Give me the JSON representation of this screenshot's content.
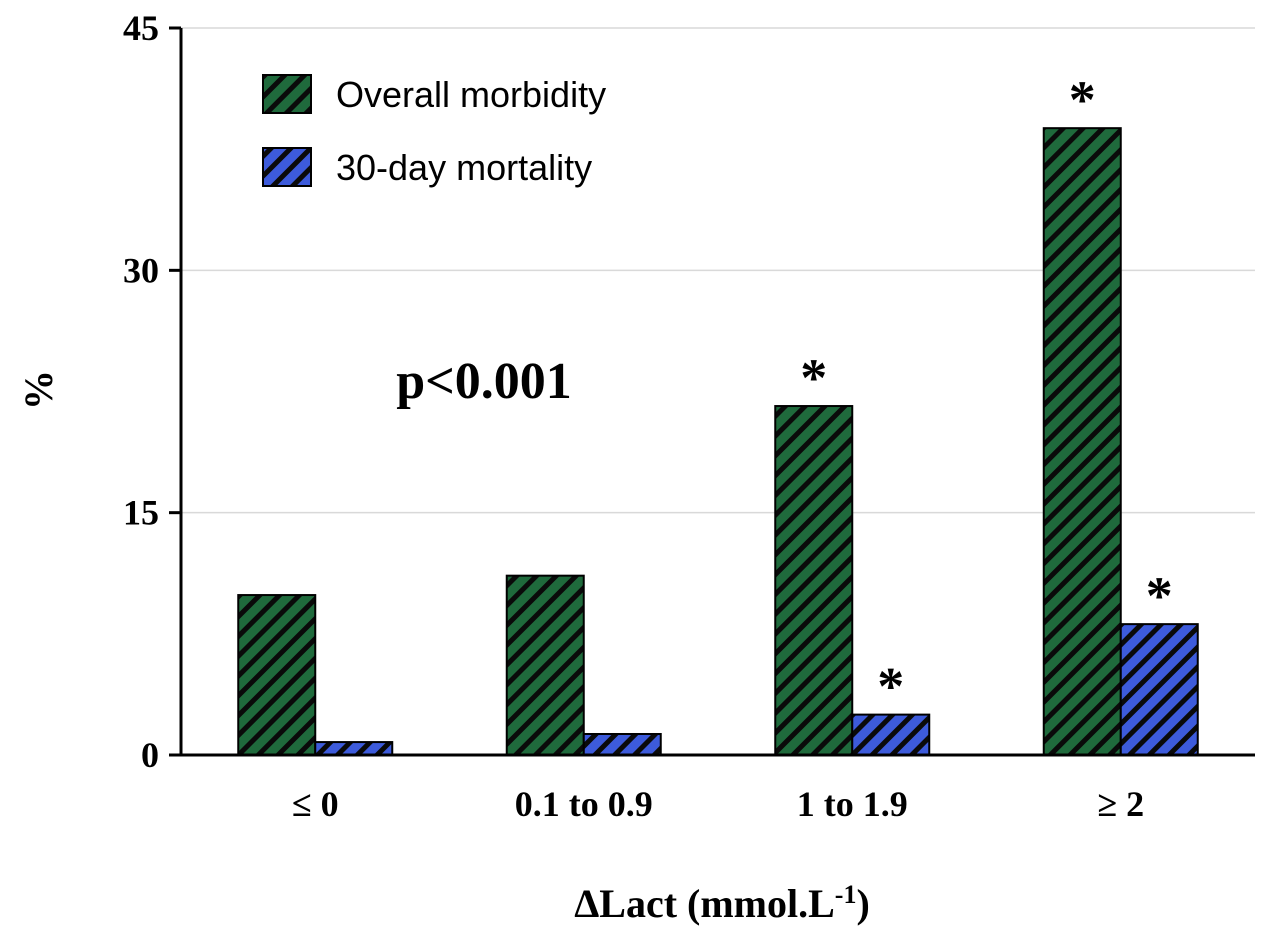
{
  "chart_data": {
    "type": "bar",
    "categories": [
      "≤ 0",
      "0.1 to 0.9",
      "1 to 1.9",
      "≥ 2"
    ],
    "series": [
      {
        "name": "Overall morbidity",
        "values": [
          9.9,
          11.1,
          21.6,
          38.8
        ],
        "significant": [
          false,
          false,
          true,
          true
        ],
        "color": "#1f6a3c"
      },
      {
        "name": "30-day mortality",
        "values": [
          0.8,
          1.3,
          2.5,
          8.1
        ],
        "significant": [
          false,
          false,
          true,
          true
        ],
        "color": "#3d5bdb"
      }
    ],
    "ylabel": "%",
    "xlabel_main": "ΔLact (mmol.L",
    "xlabel_sup": "-1",
    "xlabel_end": ")",
    "ylim": [
      0,
      45
    ],
    "yticks": [
      0,
      15,
      30,
      45
    ],
    "grid": true,
    "legend_placement": "top-left",
    "annotation": "p<0.001",
    "significance_marker": "*"
  }
}
